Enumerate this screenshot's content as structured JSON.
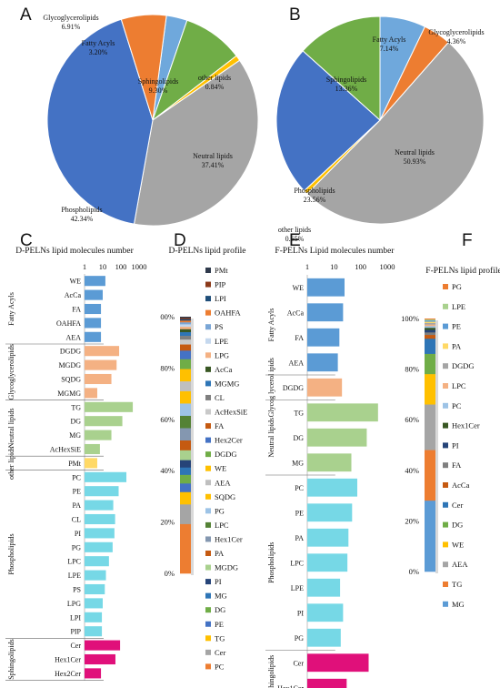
{
  "chart_data": [
    {
      "panel": "A",
      "type": "pie",
      "labels": [
        "Fatty Acyls",
        "Sphingolipids",
        "other lipids",
        "Neutral lipids",
        "Phospholipids",
        "Glycoglycerolipids"
      ],
      "values": [
        3.2,
        9.3,
        0.84,
        37.41,
        42.34,
        6.91
      ],
      "value_labels": [
        "3.20%",
        "9.30%",
        "0.84%",
        "37.41%",
        "42.34%",
        "6.91%"
      ],
      "colors": [
        "#6fa8dc",
        "#70ad47",
        "#ffc000",
        "#a5a5a5",
        "#4472c4",
        "#ed7d31"
      ]
    },
    {
      "panel": "B",
      "type": "pie",
      "labels": [
        "Fatty Acyls",
        "Glycoglycerolipids",
        "Neutral lipids",
        "other lipids",
        "Phospholipids",
        "Sphingolipids"
      ],
      "values": [
        7.14,
        4.36,
        50.93,
        0.65,
        23.56,
        13.36
      ],
      "value_labels": [
        "7.14%",
        "4.36%",
        "50.93%",
        "0.65%",
        "23.56%",
        "13.36%"
      ],
      "colors": [
        "#6fa8dc",
        "#ed7d31",
        "#a5a5a5",
        "#ffc000",
        "#4472c4",
        "#70ad47"
      ]
    },
    {
      "panel": "C",
      "type": "bar",
      "title": "D-PELNs lipid molecules number",
      "scale": "log",
      "xlim": [
        1,
        1000
      ],
      "ticks": [
        "1",
        "10",
        "100",
        "1000"
      ],
      "groups": [
        {
          "name": "Fatty Acyls",
          "color": "#5b9bd5",
          "categories": [
            "WE",
            "AcCa",
            "FA",
            "OAHFA",
            "AEA"
          ],
          "values": [
            14,
            10,
            8,
            8,
            8
          ]
        },
        {
          "name": "Glycoglycerolipids",
          "color": "#f4b183",
          "categories": [
            "DGDG",
            "MGDG",
            "SQDG",
            "MGMG"
          ],
          "values": [
            80,
            58,
            30,
            5
          ]
        },
        {
          "name": "Neutral lipids",
          "color": "#a9d18e",
          "categories": [
            "TG",
            "DG",
            "MG",
            "AcHexSiE"
          ],
          "values": [
            450,
            120,
            30,
            7
          ]
        },
        {
          "name": "other lipids",
          "color": "#ffd966",
          "categories": [
            "PMt"
          ],
          "values": [
            5
          ]
        },
        {
          "name": "Phospholipids",
          "color": "#76d8e6",
          "categories": [
            "PC",
            "PE",
            "PA",
            "CL",
            "PI",
            "PG",
            "LPC",
            "LPE",
            "PS",
            "LPG",
            "LPI",
            "PIP"
          ],
          "values": [
            200,
            75,
            38,
            48,
            44,
            35,
            22,
            15,
            13,
            10,
            9,
            9
          ]
        },
        {
          "name": "Sphingolipids",
          "color": "#e0107a",
          "categories": [
            "Cer",
            "Hex1Cer",
            "Hex2Cer"
          ],
          "values": [
            90,
            50,
            8
          ]
        }
      ]
    },
    {
      "panel": "D",
      "type": "bar",
      "stacked": true,
      "title": "D-PELNs lipid profile",
      "ticks": [
        "0%",
        "20%",
        "40%",
        "60%",
        "80%",
        "00%"
      ],
      "series": [
        {
          "name": "PMt",
          "color": "#2f3a4c",
          "value": 0.5
        },
        {
          "name": "PIP",
          "color": "#8b3a1a",
          "value": 0.5
        },
        {
          "name": "LPI",
          "color": "#1f4e79",
          "value": 0.6
        },
        {
          "name": "OAHFA",
          "color": "#ed7d31",
          "value": 0.7
        },
        {
          "name": "PS",
          "color": "#7aa6d6",
          "value": 0.8
        },
        {
          "name": "LPE",
          "color": "#c5d8ee",
          "value": 1.0
        },
        {
          "name": "LPG",
          "color": "#f4b183",
          "value": 1.0
        },
        {
          "name": "AcCa",
          "color": "#385723",
          "value": 1.2
        },
        {
          "name": "MGMG",
          "color": "#2e75b6",
          "value": 1.5
        },
        {
          "name": "CL",
          "color": "#7f7f7f",
          "value": 1.5
        },
        {
          "name": "AcHexSiE",
          "color": "#c9c9c9",
          "value": 2.0
        },
        {
          "name": "FA",
          "color": "#c55a11",
          "value": 2.5
        },
        {
          "name": "Hex2Cer",
          "color": "#4472c4",
          "value": 3.5
        },
        {
          "name": "DGDG",
          "color": "#70ad47",
          "value": 4.0
        },
        {
          "name": "WE",
          "color": "#ffc000",
          "value": 5.0
        },
        {
          "name": "AEA",
          "color": "#bfbfbf",
          "value": 4.0
        },
        {
          "name": "SQDG",
          "color": "#ffc000",
          "value": 5.0
        },
        {
          "name": "PG",
          "color": "#9dc3e6",
          "value": 5.0
        },
        {
          "name": "LPC",
          "color": "#548235",
          "value": 5.0
        },
        {
          "name": "Hex1Cer",
          "color": "#8497b0",
          "value": 5.0
        },
        {
          "name": "PA",
          "color": "#c55a11",
          "value": 4.0
        },
        {
          "name": "MGDG",
          "color": "#a9d18e",
          "value": 4.0
        },
        {
          "name": "PI",
          "color": "#264478",
          "value": 3.0
        },
        {
          "name": "MG",
          "color": "#2e75b6",
          "value": 3.0
        },
        {
          "name": "DG",
          "color": "#70ad47",
          "value": 3.5
        },
        {
          "name": "PE",
          "color": "#4472c4",
          "value": 3.5
        },
        {
          "name": "TG",
          "color": "#ffc000",
          "value": 5.0
        },
        {
          "name": "Cer",
          "color": "#a5a5a5",
          "value": 8.0
        },
        {
          "name": "PC",
          "color": "#ed7d31",
          "value": 20.0
        }
      ]
    },
    {
      "panel": "E",
      "type": "bar",
      "title": "F-PELNs Lipid molecules number",
      "scale": "log",
      "xlim": [
        1,
        1000
      ],
      "ticks": [
        "1",
        "10",
        "100",
        "1000"
      ],
      "groups": [
        {
          "name": "Fatty Acyls",
          "color": "#5b9bd5",
          "categories": [
            "WE",
            "AcCa",
            "FA",
            "AEA"
          ],
          "values": [
            25,
            22,
            16,
            14
          ]
        },
        {
          "name": "Glycog lycerol ipids",
          "color": "#f4b183",
          "categories": [
            "DGDG"
          ],
          "values": [
            20
          ]
        },
        {
          "name": "Neutral lipids",
          "color": "#a9d18e",
          "categories": [
            "TG",
            "DG",
            "MG"
          ],
          "values": [
            450,
            170,
            45
          ]
        },
        {
          "name": "Phospholipids",
          "color": "#76d8e6",
          "categories": [
            "PC",
            "PE",
            "PA",
            "LPC",
            "LPE",
            "PI",
            "PG"
          ],
          "values": [
            75,
            48,
            35,
            32,
            17,
            22,
            18
          ]
        },
        {
          "name": "Sphingolipids",
          "color": "#e0107a",
          "categories": [
            "Cer",
            "Hex1Cer"
          ],
          "values": [
            200,
            30
          ]
        }
      ]
    },
    {
      "panel": "F",
      "type": "bar",
      "stacked": true,
      "title": "F-PELNs lipid profile",
      "ticks": [
        "0%",
        "20%",
        "40%",
        "60%",
        "80%",
        "100%"
      ],
      "series": [
        {
          "name": "PG",
          "color": "#ed7d31",
          "value": 0.4
        },
        {
          "name": "LPE",
          "color": "#a9d18e",
          "value": 0.4
        },
        {
          "name": "PE",
          "color": "#5b9bd5",
          "value": 0.5
        },
        {
          "name": "PA",
          "color": "#ffd966",
          "value": 0.5
        },
        {
          "name": "DGDG",
          "color": "#a5a5a5",
          "value": 0.6
        },
        {
          "name": "LPC",
          "color": "#f4b183",
          "value": 0.6
        },
        {
          "name": "PC",
          "color": "#9dc3e6",
          "value": 0.7
        },
        {
          "name": "Hex1Cer",
          "color": "#385723",
          "value": 0.8
        },
        {
          "name": "PI",
          "color": "#264478",
          "value": 1.0
        },
        {
          "name": "FA",
          "color": "#7f7f7f",
          "value": 1.0
        },
        {
          "name": "AcCa",
          "color": "#c55a11",
          "value": 1.5
        },
        {
          "name": "Cer",
          "color": "#2e75b6",
          "value": 6.0
        },
        {
          "name": "DG",
          "color": "#70ad47",
          "value": 8.0
        },
        {
          "name": "WE",
          "color": "#ffc000",
          "value": 12.0
        },
        {
          "name": "AEA",
          "color": "#a5a5a5",
          "value": 18.0
        },
        {
          "name": "TG",
          "color": "#ed7d31",
          "value": 20.0
        },
        {
          "name": "MG",
          "color": "#5b9bd5",
          "value": 28.0
        }
      ]
    }
  ],
  "panel_letters": [
    "A",
    "B",
    "C",
    "D",
    "E",
    "F"
  ]
}
